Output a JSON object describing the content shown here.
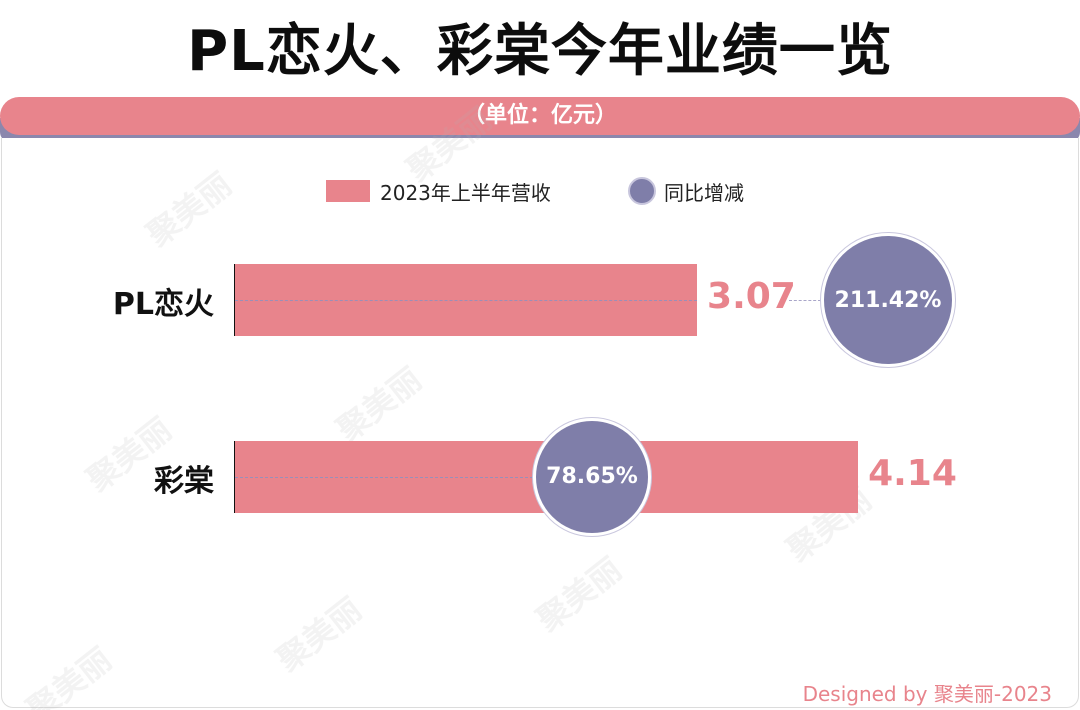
{
  "title": "PL恋火、彩棠今年业绩一览",
  "unit": "（单位：亿元）",
  "legend": {
    "bar_label": "2023年上半年营收",
    "bubble_label": "同比增减"
  },
  "watermark": "聚美丽",
  "credit": "Designed by 聚美丽-2023",
  "colors": {
    "bar": "#e8848c",
    "bubble": "#7f7ea9",
    "banner_stripe": "#8b87ad"
  },
  "chart_data": {
    "type": "bar",
    "orientation": "horizontal",
    "categories": [
      "PL恋火",
      "彩棠"
    ],
    "series": [
      {
        "name": "2023年上半年营收",
        "values": [
          3.07,
          4.14
        ],
        "labels": [
          "3.07",
          "4.14"
        ]
      },
      {
        "name": "同比增减",
        "values": [
          211.42,
          78.65
        ],
        "labels": [
          "211.42%",
          "78.65%"
        ]
      }
    ],
    "legend_position": "top-center",
    "grid": false
  }
}
